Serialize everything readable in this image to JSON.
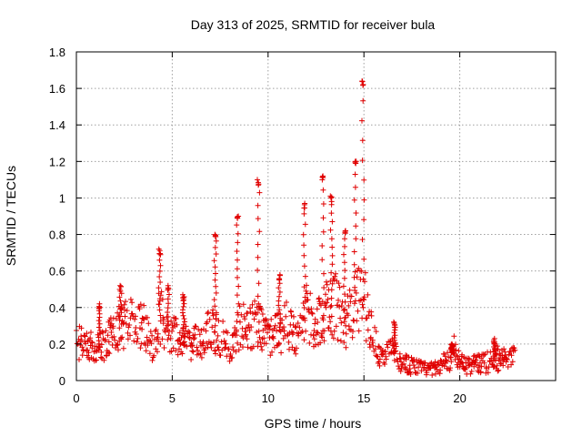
{
  "chart_data": {
    "type": "scatter",
    "title": "Day 313 of 2025, SRMTID for receiver bula",
    "xlabel": "GPS time / hours",
    "ylabel": "SRMTID / TECUs",
    "xlim": [
      0,
      25
    ],
    "ylim": [
      0,
      1.8
    ],
    "xticks": [
      0,
      5,
      10,
      15,
      20
    ],
    "yticks": [
      0,
      0.2,
      0.4,
      0.6,
      0.8,
      1,
      1.2,
      1.4,
      1.6,
      1.8
    ],
    "xtick_labels": [
      "0",
      "5",
      "10",
      "15",
      "20"
    ],
    "ytick_labels": [
      "0",
      "0.2",
      "0.4",
      "0.6",
      "0.8",
      "1",
      "1.2",
      "1.4",
      "1.6",
      "1.8"
    ],
    "grid": true,
    "marker": "+",
    "marker_color": "#e00000",
    "series": [
      {
        "name": "SRMTID",
        "x_range": [
          0,
          22.9
        ],
        "baseline_profile": [
          [
            0.0,
            0.21
          ],
          [
            0.5,
            0.2
          ],
          [
            1.0,
            0.17
          ],
          [
            1.5,
            0.2
          ],
          [
            2.0,
            0.27
          ],
          [
            2.5,
            0.3
          ],
          [
            3.0,
            0.32
          ],
          [
            3.5,
            0.3
          ],
          [
            4.0,
            0.16
          ],
          [
            4.4,
            0.35
          ],
          [
            5.0,
            0.24
          ],
          [
            5.5,
            0.25
          ],
          [
            6.0,
            0.2
          ],
          [
            6.5,
            0.22
          ],
          [
            7.0,
            0.28
          ],
          [
            7.5,
            0.25
          ],
          [
            8.0,
            0.18
          ],
          [
            8.5,
            0.3
          ],
          [
            9.0,
            0.28
          ],
          [
            9.5,
            0.32
          ],
          [
            10.0,
            0.22
          ],
          [
            10.5,
            0.26
          ],
          [
            11.0,
            0.3
          ],
          [
            11.5,
            0.23
          ],
          [
            12.0,
            0.37
          ],
          [
            12.5,
            0.3
          ],
          [
            13.0,
            0.38
          ],
          [
            13.5,
            0.42
          ],
          [
            14.0,
            0.3
          ],
          [
            14.5,
            0.42
          ],
          [
            15.0,
            0.45
          ],
          [
            15.3,
            0.3
          ],
          [
            15.8,
            0.14
          ],
          [
            16.5,
            0.16
          ],
          [
            17.0,
            0.1
          ],
          [
            17.5,
            0.08
          ],
          [
            18.0,
            0.07
          ],
          [
            18.5,
            0.06
          ],
          [
            19.0,
            0.08
          ],
          [
            19.5,
            0.12
          ],
          [
            19.7,
            0.18
          ],
          [
            20.0,
            0.1
          ],
          [
            20.5,
            0.08
          ],
          [
            21.0,
            0.09
          ],
          [
            21.5,
            0.1
          ],
          [
            22.0,
            0.12
          ],
          [
            22.5,
            0.12
          ],
          [
            22.9,
            0.13
          ]
        ],
        "spikes": [
          {
            "x": 1.2,
            "y": 0.42
          },
          {
            "x": 2.3,
            "y": 0.52
          },
          {
            "x": 4.35,
            "y": 0.72
          },
          {
            "x": 4.8,
            "y": 0.52
          },
          {
            "x": 5.6,
            "y": 0.47
          },
          {
            "x": 7.25,
            "y": 0.8
          },
          {
            "x": 8.4,
            "y": 0.9
          },
          {
            "x": 9.5,
            "y": 1.1
          },
          {
            "x": 10.6,
            "y": 0.58
          },
          {
            "x": 11.9,
            "y": 0.97
          },
          {
            "x": 12.85,
            "y": 1.12
          },
          {
            "x": 13.3,
            "y": 1.01
          },
          {
            "x": 14.0,
            "y": 0.82
          },
          {
            "x": 14.55,
            "y": 1.2
          },
          {
            "x": 14.95,
            "y": 1.64
          },
          {
            "x": 16.6,
            "y": 0.32
          },
          {
            "x": 19.6,
            "y": 0.2
          },
          {
            "x": 21.8,
            "y": 0.23
          }
        ]
      }
    ]
  }
}
